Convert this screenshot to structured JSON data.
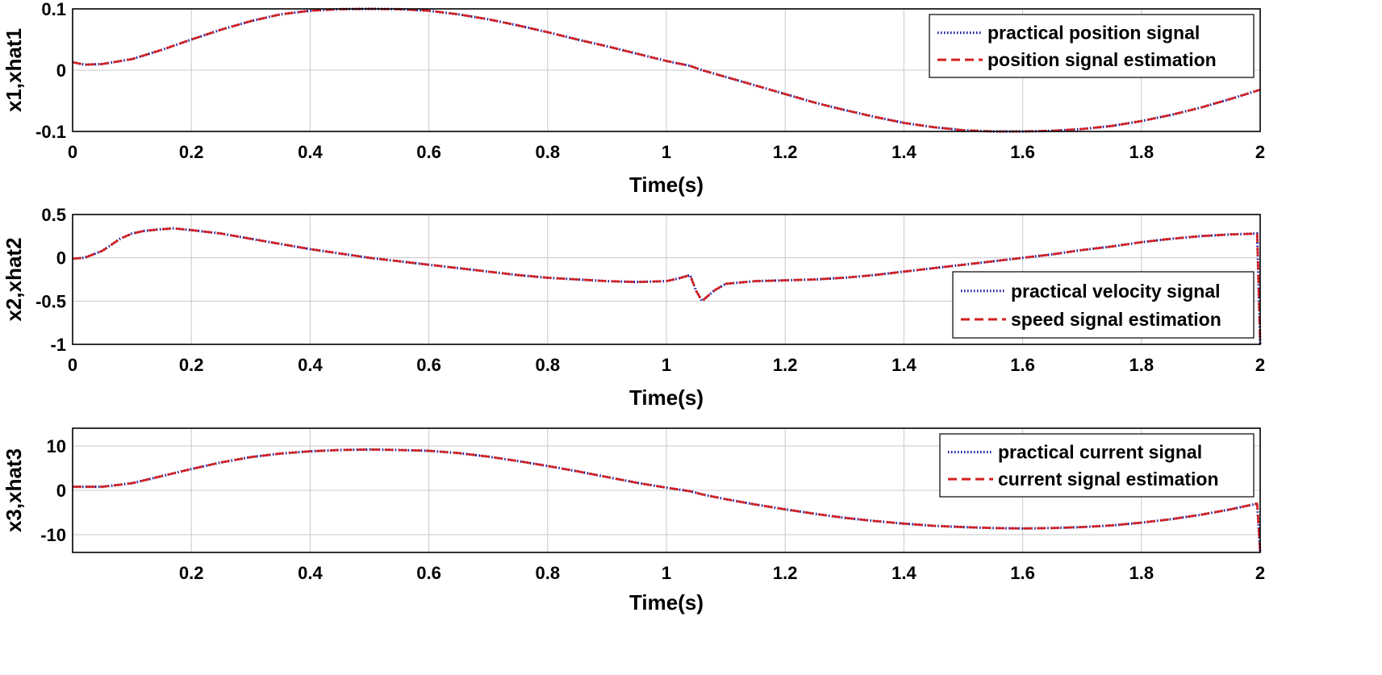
{
  "chart_data": [
    {
      "type": "line",
      "xlabel": "Time(s)",
      "ylabel": "x1,xhat1",
      "xlim": [
        0,
        2
      ],
      "ylim": [
        -0.1,
        0.1
      ],
      "xticks": [
        0,
        0.2,
        0.4,
        0.6,
        0.8,
        1,
        1.2,
        1.4,
        1.6,
        1.8,
        2
      ],
      "xtick_labels": [
        "0",
        "0.2",
        "0.4",
        "0.6",
        "0.8",
        "1",
        "1.2",
        "1.4",
        "1.6",
        "1.8",
        "2"
      ],
      "yticks": [
        -0.1,
        0,
        0.1
      ],
      "ytick_labels": [
        "-0.1",
        "0",
        "0.1"
      ],
      "grid": true,
      "legend_position": "top-right",
      "series": [
        {
          "name": "practical position signal",
          "color": "#1a1aa0",
          "style": "dotted",
          "x": [
            0,
            0.02,
            0.05,
            0.1,
            0.15,
            0.2,
            0.25,
            0.3,
            0.35,
            0.4,
            0.45,
            0.5,
            0.55,
            0.6,
            0.65,
            0.7,
            0.75,
            0.8,
            0.85,
            0.9,
            0.95,
            1.0,
            1.04,
            1.06,
            1.1,
            1.15,
            1.2,
            1.25,
            1.3,
            1.35,
            1.4,
            1.45,
            1.5,
            1.55,
            1.6,
            1.65,
            1.7,
            1.75,
            1.8,
            1.85,
            1.9,
            1.95,
            2.0
          ],
          "values": [
            0.013,
            0.009,
            0.01,
            0.018,
            0.033,
            0.05,
            0.066,
            0.08,
            0.091,
            0.097,
            0.0995,
            0.1,
            0.0995,
            0.097,
            0.091,
            0.083,
            0.073,
            0.062,
            0.05,
            0.039,
            0.027,
            0.015,
            0.007,
            0.0,
            -0.011,
            -0.025,
            -0.039,
            -0.053,
            -0.065,
            -0.076,
            -0.086,
            -0.093,
            -0.098,
            -0.1,
            -0.1,
            -0.099,
            -0.096,
            -0.091,
            -0.083,
            -0.073,
            -0.061,
            -0.047,
            -0.032
          ]
        },
        {
          "name": "position signal estimation",
          "color": "#d42020",
          "style": "dashed",
          "x": [
            0,
            0.02,
            0.05,
            0.1,
            0.15,
            0.2,
            0.25,
            0.3,
            0.35,
            0.4,
            0.45,
            0.5,
            0.55,
            0.6,
            0.65,
            0.7,
            0.75,
            0.8,
            0.85,
            0.9,
            0.95,
            1.0,
            1.04,
            1.06,
            1.1,
            1.15,
            1.2,
            1.25,
            1.3,
            1.35,
            1.4,
            1.45,
            1.5,
            1.55,
            1.6,
            1.65,
            1.7,
            1.75,
            1.8,
            1.85,
            1.9,
            1.95,
            2.0
          ],
          "values": [
            0.013,
            0.009,
            0.01,
            0.018,
            0.033,
            0.05,
            0.066,
            0.08,
            0.091,
            0.097,
            0.0995,
            0.1,
            0.0995,
            0.097,
            0.091,
            0.083,
            0.073,
            0.062,
            0.05,
            0.039,
            0.027,
            0.015,
            0.007,
            0.0,
            -0.011,
            -0.025,
            -0.039,
            -0.053,
            -0.065,
            -0.076,
            -0.086,
            -0.093,
            -0.098,
            -0.1,
            -0.1,
            -0.099,
            -0.096,
            -0.091,
            -0.083,
            -0.073,
            -0.061,
            -0.047,
            -0.032
          ]
        }
      ]
    },
    {
      "type": "line",
      "xlabel": "Time(s)",
      "ylabel": "x2,xhat2",
      "xlim": [
        0,
        2
      ],
      "ylim": [
        -1,
        0.5
      ],
      "xticks": [
        0,
        0.2,
        0.4,
        0.6,
        0.8,
        1,
        1.2,
        1.4,
        1.6,
        1.8,
        2
      ],
      "xtick_labels": [
        "0",
        "0.2",
        "0.4",
        "0.6",
        "0.8",
        "1",
        "1.2",
        "1.4",
        "1.6",
        "1.8",
        "2"
      ],
      "yticks": [
        -1,
        -0.5,
        0,
        0.5
      ],
      "ytick_labels": [
        "-1",
        "-0.5",
        "0",
        "0.5"
      ],
      "grid": true,
      "legend_position": "bottom-right",
      "series": [
        {
          "name": "practical velocity signal",
          "color": "#1a1aa0",
          "style": "dotted",
          "x": [
            0,
            0.02,
            0.05,
            0.08,
            0.1,
            0.12,
            0.15,
            0.17,
            0.2,
            0.25,
            0.3,
            0.35,
            0.4,
            0.45,
            0.5,
            0.55,
            0.6,
            0.65,
            0.7,
            0.75,
            0.8,
            0.85,
            0.9,
            0.95,
            1.0,
            1.02,
            1.04,
            1.05,
            1.06,
            1.08,
            1.1,
            1.15,
            1.2,
            1.25,
            1.3,
            1.35,
            1.4,
            1.45,
            1.5,
            1.55,
            1.6,
            1.65,
            1.7,
            1.75,
            1.8,
            1.85,
            1.9,
            1.95,
            1.995,
            2.0
          ],
          "values": [
            -0.01,
            0.0,
            0.08,
            0.22,
            0.28,
            0.31,
            0.33,
            0.34,
            0.32,
            0.28,
            0.22,
            0.16,
            0.1,
            0.05,
            0.0,
            -0.04,
            -0.08,
            -0.12,
            -0.16,
            -0.2,
            -0.23,
            -0.25,
            -0.27,
            -0.28,
            -0.27,
            -0.24,
            -0.2,
            -0.38,
            -0.5,
            -0.38,
            -0.3,
            -0.27,
            -0.26,
            -0.25,
            -0.23,
            -0.2,
            -0.16,
            -0.12,
            -0.08,
            -0.04,
            0.0,
            0.04,
            0.09,
            0.13,
            0.18,
            0.22,
            0.25,
            0.27,
            0.28,
            -1.0
          ]
        },
        {
          "name": "speed signal estimation",
          "color": "#d42020",
          "style": "dashed",
          "x": [
            0,
            0.02,
            0.05,
            0.08,
            0.1,
            0.12,
            0.15,
            0.17,
            0.2,
            0.25,
            0.3,
            0.35,
            0.4,
            0.45,
            0.5,
            0.55,
            0.6,
            0.65,
            0.7,
            0.75,
            0.8,
            0.85,
            0.9,
            0.95,
            1.0,
            1.02,
            1.04,
            1.05,
            1.06,
            1.08,
            1.1,
            1.15,
            1.2,
            1.25,
            1.3,
            1.35,
            1.4,
            1.45,
            1.5,
            1.55,
            1.6,
            1.65,
            1.7,
            1.75,
            1.8,
            1.85,
            1.9,
            1.95,
            1.995,
            2.0
          ],
          "values": [
            -0.01,
            0.0,
            0.08,
            0.22,
            0.28,
            0.31,
            0.33,
            0.34,
            0.32,
            0.28,
            0.22,
            0.16,
            0.1,
            0.05,
            0.0,
            -0.04,
            -0.08,
            -0.12,
            -0.16,
            -0.2,
            -0.23,
            -0.25,
            -0.27,
            -0.28,
            -0.27,
            -0.24,
            -0.2,
            -0.38,
            -0.5,
            -0.38,
            -0.3,
            -0.27,
            -0.26,
            -0.25,
            -0.23,
            -0.2,
            -0.16,
            -0.12,
            -0.08,
            -0.04,
            0.0,
            0.04,
            0.09,
            0.13,
            0.18,
            0.22,
            0.25,
            0.27,
            0.28,
            -1.0
          ]
        }
      ]
    },
    {
      "type": "line",
      "xlabel": "Time(s)",
      "ylabel": "x3,xhat3",
      "xlim": [
        0.0,
        2
      ],
      "ylim": [
        -14,
        14
      ],
      "xticks": [
        0.2,
        0.4,
        0.6,
        0.8,
        1,
        1.2,
        1.4,
        1.6,
        1.8,
        2
      ],
      "xtick_labels": [
        "0.2",
        "0.4",
        "0.6",
        "0.8",
        "1",
        "1.2",
        "1.4",
        "1.6",
        "1.8",
        "2"
      ],
      "yticks": [
        -10,
        0,
        10
      ],
      "ytick_labels": [
        "-10",
        "0",
        "10"
      ],
      "grid": true,
      "legend_position": "top-right",
      "series": [
        {
          "name": "practical current signal",
          "color": "#1a1aa0",
          "style": "dotted",
          "x": [
            0,
            0.05,
            0.1,
            0.15,
            0.2,
            0.25,
            0.3,
            0.35,
            0.4,
            0.45,
            0.5,
            0.55,
            0.6,
            0.65,
            0.7,
            0.75,
            0.8,
            0.85,
            0.9,
            0.95,
            1.0,
            1.04,
            1.06,
            1.1,
            1.15,
            1.2,
            1.25,
            1.3,
            1.35,
            1.4,
            1.45,
            1.5,
            1.55,
            1.6,
            1.65,
            1.7,
            1.75,
            1.8,
            1.85,
            1.9,
            1.95,
            1.995,
            2.0
          ],
          "values": [
            0.8,
            0.8,
            1.6,
            3.2,
            4.8,
            6.3,
            7.5,
            8.3,
            8.8,
            9.1,
            9.2,
            9.1,
            8.9,
            8.4,
            7.6,
            6.6,
            5.5,
            4.3,
            3.0,
            1.7,
            0.6,
            -0.2,
            -0.9,
            -2.0,
            -3.2,
            -4.3,
            -5.3,
            -6.2,
            -6.9,
            -7.5,
            -8.0,
            -8.3,
            -8.5,
            -8.6,
            -8.5,
            -8.3,
            -7.9,
            -7.3,
            -6.5,
            -5.5,
            -4.3,
            -3.0,
            -14.0
          ]
        },
        {
          "name": "current signal estimation",
          "color": "#d42020",
          "style": "dashed",
          "x": [
            0,
            0.05,
            0.1,
            0.15,
            0.2,
            0.25,
            0.3,
            0.35,
            0.4,
            0.45,
            0.5,
            0.55,
            0.6,
            0.65,
            0.7,
            0.75,
            0.8,
            0.85,
            0.9,
            0.95,
            1.0,
            1.04,
            1.06,
            1.1,
            1.15,
            1.2,
            1.25,
            1.3,
            1.35,
            1.4,
            1.45,
            1.5,
            1.55,
            1.6,
            1.65,
            1.7,
            1.75,
            1.8,
            1.85,
            1.9,
            1.95,
            1.995,
            2.0
          ],
          "values": [
            0.8,
            0.8,
            1.6,
            3.2,
            4.8,
            6.3,
            7.5,
            8.3,
            8.8,
            9.1,
            9.2,
            9.1,
            8.9,
            8.4,
            7.6,
            6.6,
            5.5,
            4.3,
            3.0,
            1.7,
            0.6,
            -0.2,
            -0.9,
            -2.0,
            -3.2,
            -4.3,
            -5.3,
            -6.2,
            -6.9,
            -7.5,
            -8.0,
            -8.3,
            -8.5,
            -8.6,
            -8.5,
            -8.3,
            -7.9,
            -7.3,
            -6.5,
            -5.5,
            -4.3,
            -3.0,
            -14.0
          ]
        }
      ]
    }
  ]
}
